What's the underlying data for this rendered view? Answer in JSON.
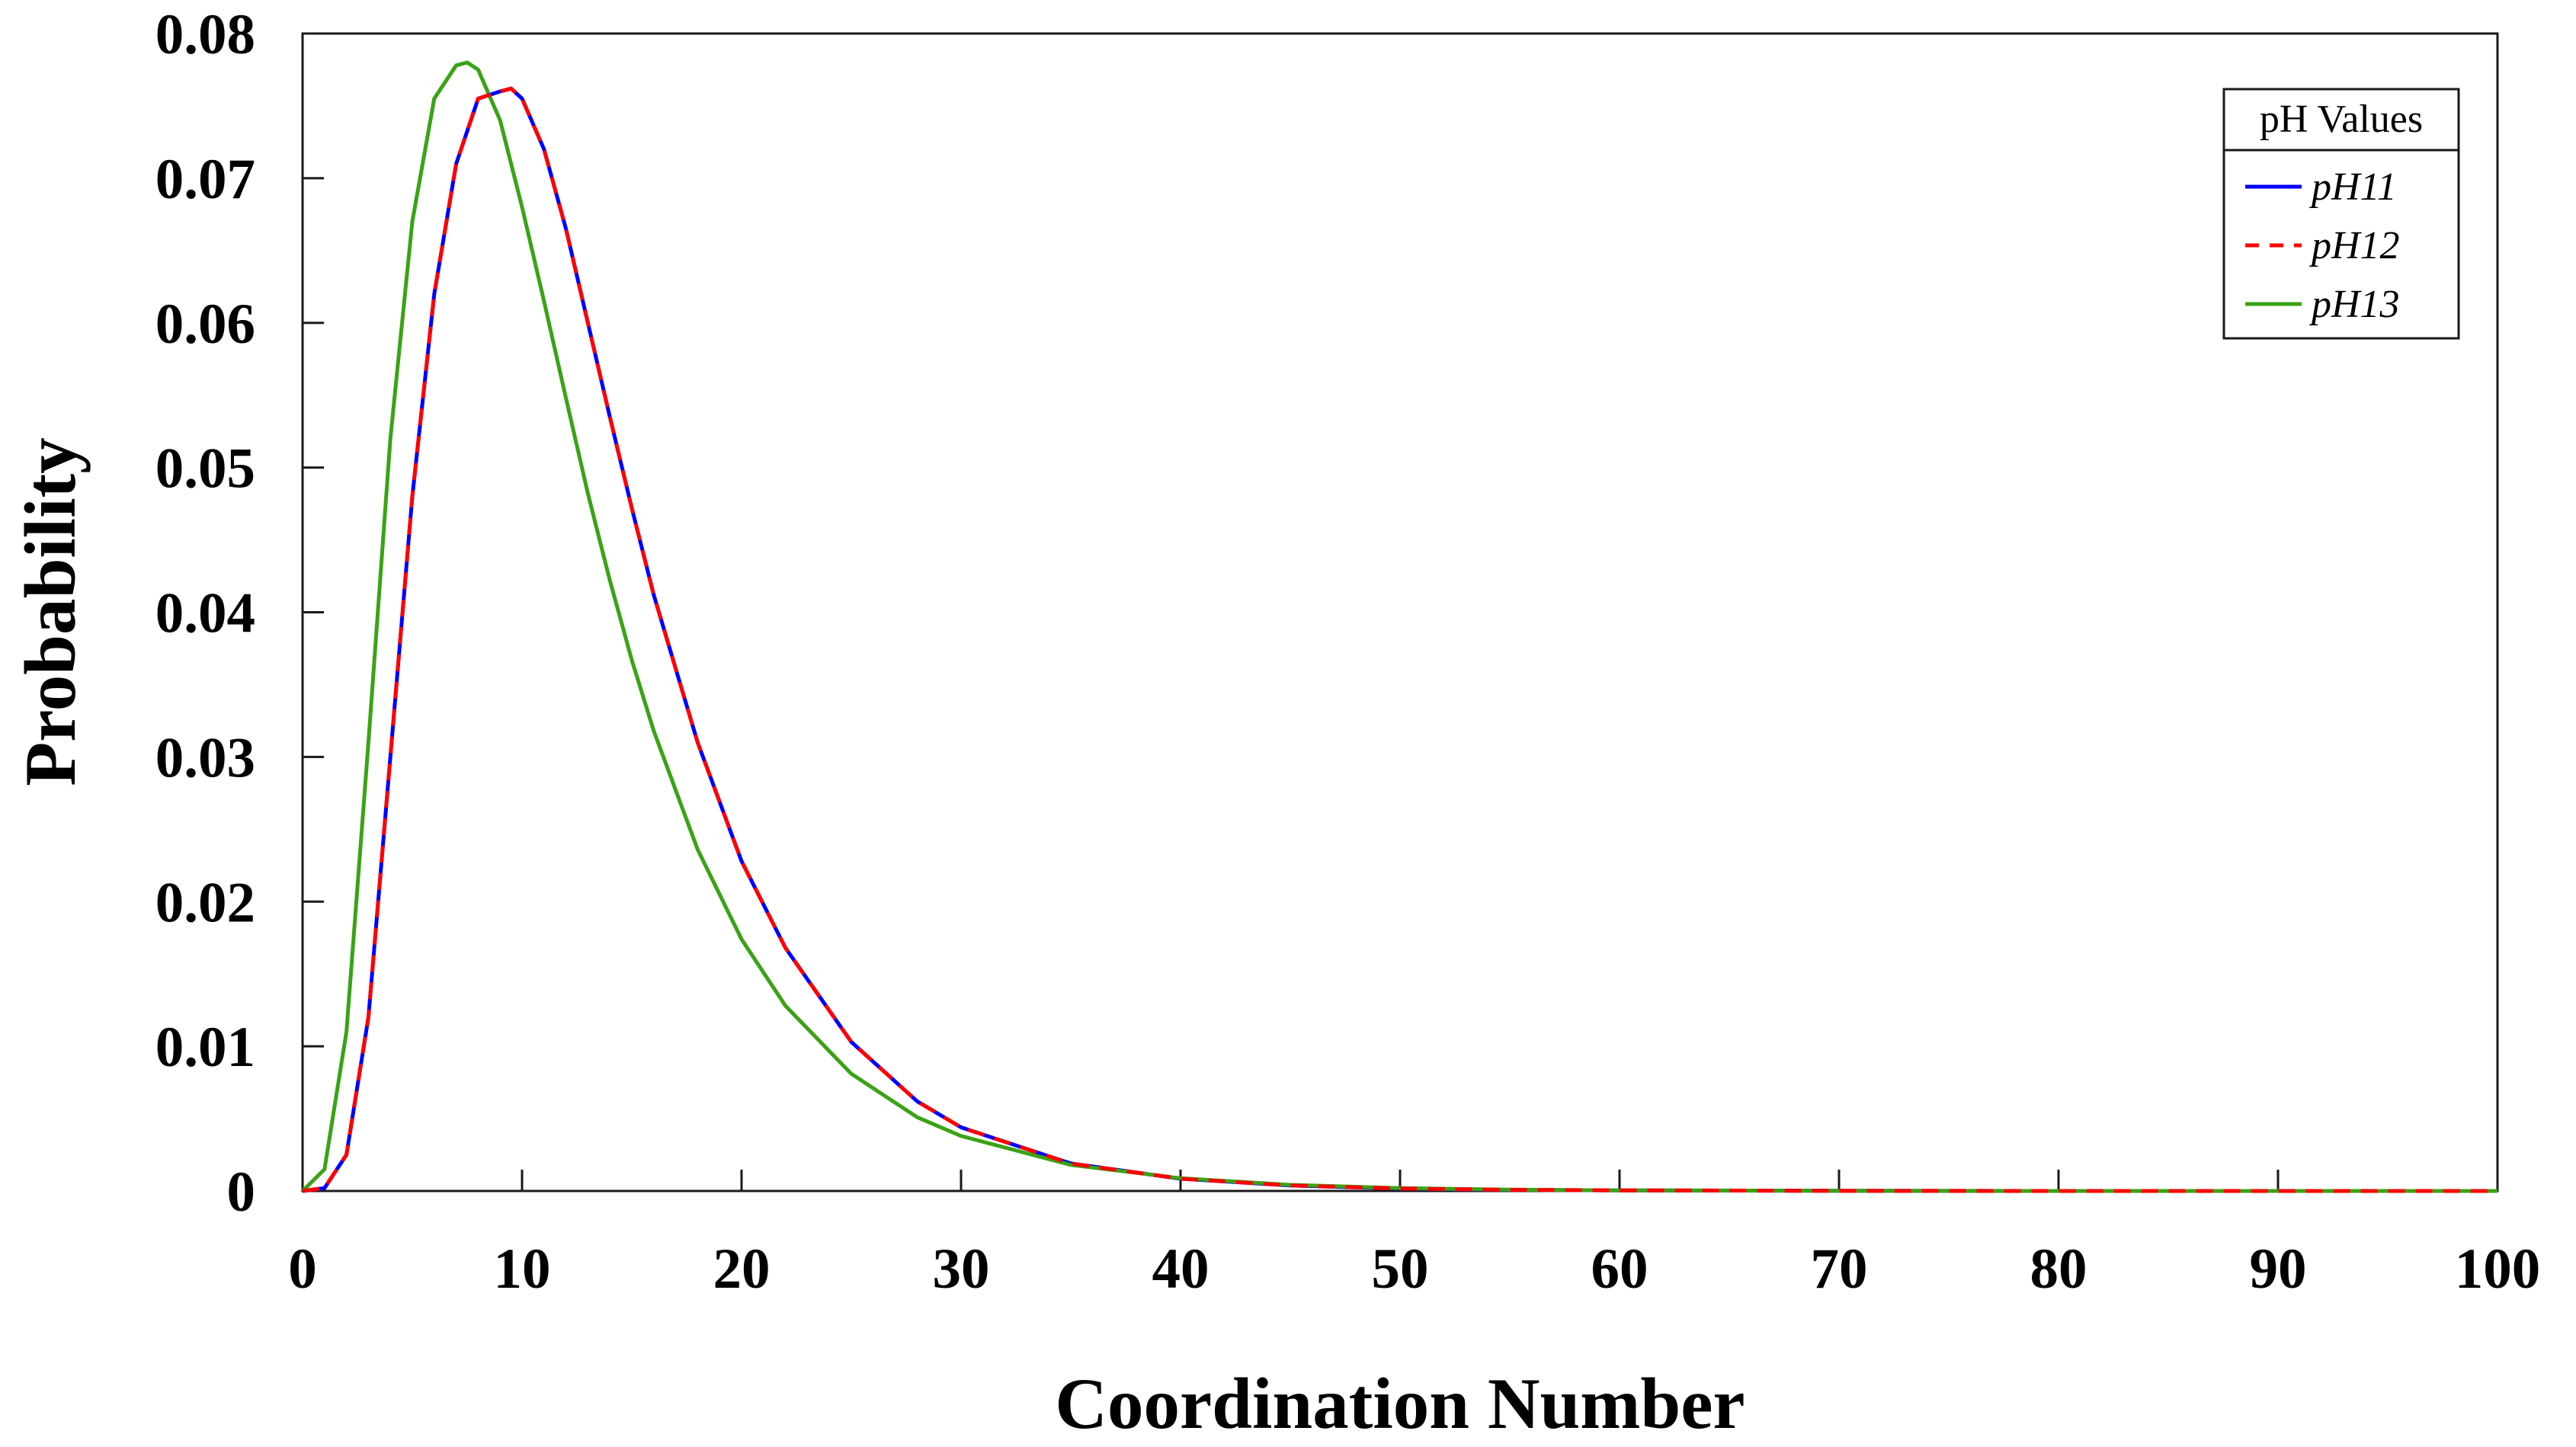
{
  "chart_data": {
    "type": "line",
    "title": "",
    "xlabel": "Coordination Number",
    "ylabel": "Probability",
    "xlim": [
      0,
      100
    ],
    "ylim": [
      0,
      0.08
    ],
    "xticks": [
      0,
      10,
      20,
      30,
      40,
      50,
      60,
      70,
      80,
      90,
      100
    ],
    "xtick_labels": [
      "0",
      "10",
      "20",
      "30",
      "40",
      "50",
      "60",
      "70",
      "80",
      "90",
      "100"
    ],
    "yticks": [
      0,
      0.01,
      0.02,
      0.03,
      0.04,
      0.05,
      0.06,
      0.07,
      0.08
    ],
    "ytick_labels": [
      "0",
      "0.01",
      "0.02",
      "0.03",
      "0.04",
      "0.05",
      "0.06",
      "0.07",
      "0.08"
    ],
    "grid": false,
    "legend": {
      "title": "pH Values",
      "position": "top-right"
    },
    "series": [
      {
        "name": "pH11",
        "color": "#0000ff",
        "dash": "solid",
        "x": [
          0,
          1,
          2,
          3,
          4,
          5,
          6,
          7,
          8,
          9,
          9.5,
          10,
          11,
          12,
          13,
          14,
          15,
          16,
          18,
          20,
          22,
          25,
          28,
          30,
          35,
          40,
          45,
          50,
          55,
          60,
          70,
          80,
          90,
          100
        ],
        "y": [
          0,
          0.0002,
          0.0025,
          0.012,
          0.03,
          0.048,
          0.062,
          0.071,
          0.0755,
          0.076,
          0.0762,
          0.0755,
          0.072,
          0.0665,
          0.06,
          0.0535,
          0.0472,
          0.0412,
          0.031,
          0.0228,
          0.0168,
          0.0103,
          0.0062,
          0.0044,
          0.0019,
          0.00085,
          0.00038,
          0.00017,
          8e-05,
          4e-05,
          1e-05,
          0,
          0,
          0
        ]
      },
      {
        "name": "pH12",
        "color": "#ff0000",
        "dash": "dashed",
        "x": [
          0,
          1,
          2,
          3,
          4,
          5,
          6,
          7,
          8,
          9,
          9.5,
          10,
          11,
          12,
          13,
          14,
          15,
          16,
          18,
          20,
          22,
          25,
          28,
          30,
          35,
          40,
          45,
          50,
          55,
          60,
          70,
          80,
          90,
          100
        ],
        "y": [
          0,
          0.0002,
          0.0025,
          0.012,
          0.03,
          0.048,
          0.062,
          0.071,
          0.0755,
          0.076,
          0.0762,
          0.0755,
          0.072,
          0.0665,
          0.06,
          0.0535,
          0.0472,
          0.0412,
          0.031,
          0.0228,
          0.0168,
          0.0103,
          0.0062,
          0.0044,
          0.0019,
          0.00085,
          0.00038,
          0.00017,
          8e-05,
          4e-05,
          1e-05,
          0,
          0,
          0
        ]
      },
      {
        "name": "pH13",
        "color": "#3aa314",
        "dash": "solid",
        "x": [
          0,
          1,
          2,
          3,
          4,
          5,
          6,
          7,
          7.5,
          8,
          9,
          10,
          11,
          12,
          13,
          14,
          15,
          16,
          18,
          20,
          22,
          25,
          28,
          30,
          35,
          40,
          45,
          50,
          55,
          60,
          70,
          80,
          90,
          100
        ],
        "y": [
          0,
          0.0015,
          0.011,
          0.031,
          0.052,
          0.067,
          0.0755,
          0.0778,
          0.078,
          0.0775,
          0.074,
          0.068,
          0.0615,
          0.0548,
          0.0482,
          0.0422,
          0.0367,
          0.0318,
          0.0236,
          0.0174,
          0.0128,
          0.0081,
          0.0051,
          0.0038,
          0.0018,
          0.00088,
          0.00042,
          0.0002,
          9e-05,
          4e-05,
          1e-05,
          0,
          0,
          0
        ]
      }
    ]
  }
}
